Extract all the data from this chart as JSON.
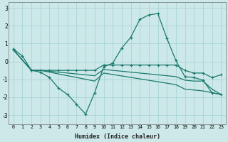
{
  "xlabel": "Humidex (Indice chaleur)",
  "background_color": "#cce8e8",
  "grid_color": "#aad4d4",
  "line_color": "#1a7a6e",
  "xlim": [
    -0.5,
    23.5
  ],
  "ylim": [
    -3.5,
    3.3
  ],
  "xticks": [
    0,
    1,
    2,
    3,
    4,
    5,
    6,
    7,
    8,
    9,
    10,
    11,
    12,
    13,
    14,
    15,
    16,
    17,
    18,
    19,
    20,
    21,
    22,
    23
  ],
  "yticks": [
    -3,
    -2,
    -1,
    0,
    1,
    2,
    3
  ],
  "line1_x": [
    0,
    1,
    2,
    3,
    4,
    5,
    6,
    7,
    8,
    9,
    10,
    11,
    12,
    13,
    14,
    15,
    16,
    17,
    18,
    19,
    20,
    21,
    22,
    23
  ],
  "line1_y": [
    0.7,
    0.3,
    -0.5,
    -0.6,
    -0.9,
    -1.5,
    -1.85,
    -2.4,
    -2.95,
    -1.75,
    -0.3,
    -0.1,
    0.75,
    1.35,
    2.35,
    2.6,
    2.68,
    1.3,
    0.05,
    -0.85,
    -0.9,
    -1.05,
    -1.75,
    -1.85
  ],
  "line2_x": [
    0,
    2,
    3,
    4,
    5,
    6,
    7,
    8,
    9,
    10,
    11,
    12,
    13,
    14,
    15,
    16,
    17,
    18,
    19,
    20,
    21,
    22,
    23
  ],
  "line2_y": [
    0.65,
    -0.5,
    -0.5,
    -0.5,
    -0.5,
    -0.5,
    -0.5,
    -0.5,
    -0.5,
    -0.2,
    -0.2,
    -0.2,
    -0.2,
    -0.2,
    -0.2,
    -0.2,
    -0.2,
    -0.2,
    -0.5,
    -0.65,
    -0.65,
    -0.9,
    -0.75
  ],
  "line3_x": [
    0,
    2,
    3,
    4,
    5,
    6,
    7,
    8,
    9,
    10,
    18,
    19,
    20,
    21,
    22,
    23
  ],
  "line3_y": [
    0.65,
    -0.5,
    -0.5,
    -0.55,
    -0.6,
    -0.65,
    -0.7,
    -0.75,
    -0.8,
    -0.45,
    -0.85,
    -1.05,
    -1.1,
    -1.1,
    -1.55,
    -1.85
  ],
  "line4_x": [
    0,
    2,
    3,
    4,
    5,
    6,
    7,
    8,
    9,
    10,
    18,
    19,
    20,
    21,
    22,
    23
  ],
  "line4_y": [
    0.65,
    -0.5,
    -0.5,
    -0.6,
    -0.7,
    -0.8,
    -0.9,
    -1.0,
    -1.1,
    -0.65,
    -1.3,
    -1.55,
    -1.6,
    -1.65,
    -1.75,
    -1.85
  ]
}
